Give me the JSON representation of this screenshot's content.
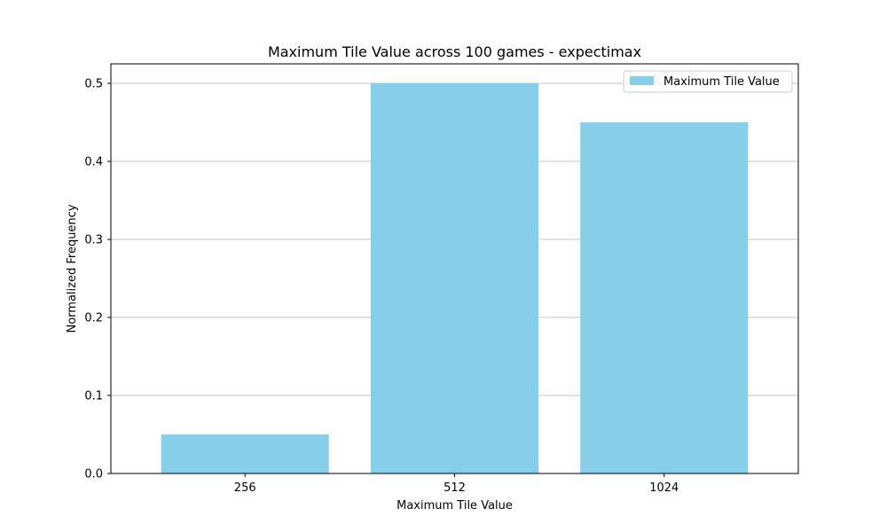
{
  "chart_data": {
    "type": "bar",
    "title": "Maximum Tile Value across 100 games - expectimax",
    "xlabel": "Maximum Tile Value",
    "ylabel": "Normalized Frequency",
    "categories": [
      "256",
      "512",
      "1024"
    ],
    "series": [
      {
        "name": "Maximum Tile Value",
        "values": [
          0.05,
          0.5,
          0.45
        ]
      }
    ],
    "ylim": [
      0,
      0.525
    ],
    "yticks": [
      0.0,
      0.1,
      0.2,
      0.3,
      0.4,
      0.5
    ],
    "ytick_labels": [
      "0.0",
      "0.1",
      "0.2",
      "0.3",
      "0.4",
      "0.5"
    ],
    "grid": "y-major",
    "legend_position": "top-right",
    "bar_color": "#87CEEB",
    "grid_color": "#b0b0b0"
  }
}
